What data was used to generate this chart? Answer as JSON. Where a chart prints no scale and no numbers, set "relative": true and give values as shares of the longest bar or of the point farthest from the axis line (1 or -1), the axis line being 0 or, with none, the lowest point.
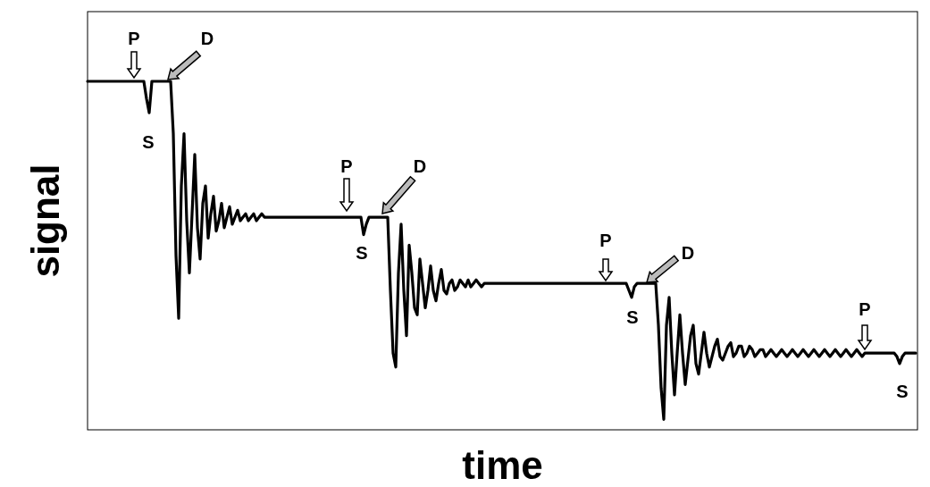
{
  "chart_data": {
    "type": "line",
    "relative": true,
    "xlabel": "time",
    "ylabel": "signal",
    "line_style": "solid",
    "annotations": [
      "P",
      "D",
      "S",
      "P",
      "D",
      "S",
      "P",
      "D",
      "S",
      "P",
      "S"
    ],
    "categories": [
      null,
      null,
      null,
      null,
      null,
      null,
      null,
      null,
      null,
      null,
      null,
      null,
      null,
      null,
      null,
      null,
      null,
      null,
      null,
      null,
      null,
      null,
      null,
      null,
      null,
      null,
      null,
      null,
      null,
      null,
      null,
      null,
      null,
      null,
      null,
      null,
      null,
      null,
      null,
      null,
      null,
      null,
      null,
      null,
      null,
      null,
      null,
      null,
      null,
      null,
      null,
      null,
      null,
      null,
      null,
      null,
      null,
      null,
      null,
      null,
      null,
      null,
      null,
      null,
      null,
      null,
      null,
      null,
      null,
      null,
      null,
      null,
      null,
      null,
      null,
      null,
      null,
      null,
      null,
      null,
      null,
      null,
      null,
      null,
      null,
      null,
      null,
      null,
      null,
      null,
      null,
      null,
      null,
      null,
      null,
      null,
      null,
      null,
      null,
      null,
      null,
      null,
      null,
      null,
      null,
      null,
      null,
      null,
      null,
      null,
      null,
      null,
      null,
      null,
      null,
      null,
      null,
      null,
      null,
      null,
      null,
      null,
      null,
      null,
      null,
      null,
      null,
      null,
      null,
      null,
      null,
      null,
      null,
      null,
      null,
      null,
      null,
      null,
      null,
      null,
      null,
      null,
      null,
      null,
      null,
      null,
      null,
      null,
      null,
      null,
      null,
      null,
      null,
      null,
      null,
      null,
      null,
      null,
      null,
      null,
      null,
      null,
      null,
      null,
      null,
      null,
      null,
      null,
      null,
      null,
      null,
      null,
      null,
      null,
      null,
      null,
      null,
      null,
      null,
      null,
      null,
      null,
      null,
      null,
      null,
      null,
      null,
      null,
      null,
      null,
      null,
      null,
      null,
      null,
      null,
      null,
      null,
      null,
      null,
      null,
      null,
      null,
      null,
      null,
      null,
      null,
      null,
      null,
      null,
      null,
      null,
      null,
      null,
      null,
      null,
      null,
      null,
      null,
      null,
      null,
      null,
      null,
      null,
      null,
      null,
      null,
      null,
      null,
      null,
      null,
      null,
      null,
      null,
      null,
      null,
      null,
      null,
      null,
      null,
      null,
      null,
      null,
      null,
      null,
      null,
      null,
      null,
      null,
      null,
      null,
      null,
      null,
      null,
      null,
      null,
      null,
      null,
      null,
      null,
      null,
      null,
      null,
      null,
      null,
      null,
      null,
      null,
      null,
      null,
      null,
      null,
      null,
      null,
      null,
      null,
      null,
      null,
      null,
      null,
      null,
      null,
      null,
      null,
      null,
      null,
      null,
      null,
      null,
      null,
      null,
      null,
      null,
      null,
      null,
      null,
      null,
      null,
      null,
      null,
      null,
      null,
      null,
      null,
      null,
      null,
      null,
      null,
      null,
      null,
      null
    ],
    "series": [
      {
        "color": "#000000",
        "values": [
          1,
          1,
          1,
          1,
          1,
          1,
          1,
          1,
          1,
          1,
          1,
          1,
          1,
          1,
          1,
          1,
          1,
          1,
          1,
          1,
          1,
          1,
          0.95,
          0.91,
          1,
          1,
          1,
          1,
          1,
          1,
          1,
          1,
          0.85,
          0.5,
          0.32,
          0.7,
          0.85,
          0.6,
          0.45,
          0.62,
          0.79,
          0.58,
          0.49,
          0.65,
          0.7,
          0.55,
          0.62,
          0.67,
          0.57,
          0.6,
          0.65,
          0.58,
          0.61,
          0.64,
          0.59,
          0.61,
          0.63,
          0.6,
          0.61,
          0.62,
          0.6,
          0.61,
          0.62,
          0.6,
          0.61,
          0.62,
          0.61,
          0.61,
          0.61,
          0.61,
          0.61,
          0.61,
          0.61,
          0.61,
          0.61,
          0.61,
          0.61,
          0.61,
          0.61,
          0.61,
          0.61,
          0.61,
          0.61,
          0.61,
          0.61,
          0.61,
          0.61,
          0.61,
          0.61,
          0.61,
          0.61,
          0.61,
          0.61,
          0.61,
          0.61,
          0.61,
          0.61,
          0.61,
          0.61,
          0.61,
          0.61,
          0.61,
          0.61,
          0.56,
          0.59,
          0.61,
          0.61,
          0.61,
          0.61,
          0.61,
          0.61,
          0.61,
          0.61,
          0.4,
          0.22,
          0.18,
          0.45,
          0.59,
          0.4,
          0.27,
          0.53,
          0.45,
          0.35,
          0.33,
          0.49,
          0.42,
          0.35,
          0.4,
          0.47,
          0.4,
          0.37,
          0.42,
          0.46,
          0.4,
          0.39,
          0.42,
          0.43,
          0.4,
          0.41,
          0.43,
          0.42,
          0.41,
          0.43,
          0.41,
          0.42,
          0.43,
          0.42,
          0.41,
          0.42,
          0.42,
          0.42,
          0.42,
          0.42,
          0.42,
          0.42,
          0.42,
          0.42,
          0.42,
          0.42,
          0.42,
          0.42,
          0.42,
          0.42,
          0.42,
          0.42,
          0.42,
          0.42,
          0.42,
          0.42,
          0.42,
          0.42,
          0.42,
          0.42,
          0.42,
          0.42,
          0.42,
          0.42,
          0.42,
          0.42,
          0.42,
          0.42,
          0.42,
          0.42,
          0.42,
          0.42,
          0.42,
          0.42,
          0.42,
          0.42,
          0.42,
          0.42,
          0.42,
          0.42,
          0.42,
          0.42,
          0.42,
          0.42,
          0.42,
          0.42,
          0.42,
          0.42,
          0.42,
          0.4,
          0.38,
          0.41,
          0.42,
          0.42,
          0.42,
          0.42,
          0.42,
          0.42,
          0.42,
          0.42,
          0.3,
          0.12,
          0.03,
          0.3,
          0.38,
          0.22,
          0.1,
          0.22,
          0.33,
          0.22,
          0.13,
          0.2,
          0.27,
          0.3,
          0.19,
          0.16,
          0.22,
          0.28,
          0.22,
          0.18,
          0.21,
          0.24,
          0.26,
          0.21,
          0.2,
          0.22,
          0.24,
          0.25,
          0.21,
          0.22,
          0.24,
          0.24,
          0.21,
          0.22,
          0.24,
          0.23,
          0.21,
          0.22,
          0.23,
          0.23,
          0.21,
          0.22,
          0.23,
          0.22,
          0.21,
          0.22,
          0.23,
          0.22,
          0.21,
          0.22,
          0.23,
          0.22,
          0.21,
          0.22,
          0.23,
          0.22,
          0.21,
          0.22,
          0.23,
          0.22,
          0.21,
          0.22,
          0.23,
          0.22,
          0.21,
          0.22,
          0.23,
          0.22,
          0.21,
          0.22,
          0.23,
          0.22,
          0.21,
          0.22,
          0.23,
          0.22,
          0.21,
          0.22,
          0.22,
          0.22,
          0.22,
          0.22,
          0.22,
          0.22,
          0.22,
          0.22,
          0.22,
          0.22,
          0.22,
          0.21,
          0.19,
          0.21,
          0.22,
          0.22,
          0.22,
          0.22,
          0.22
        ]
      }
    ]
  }
}
